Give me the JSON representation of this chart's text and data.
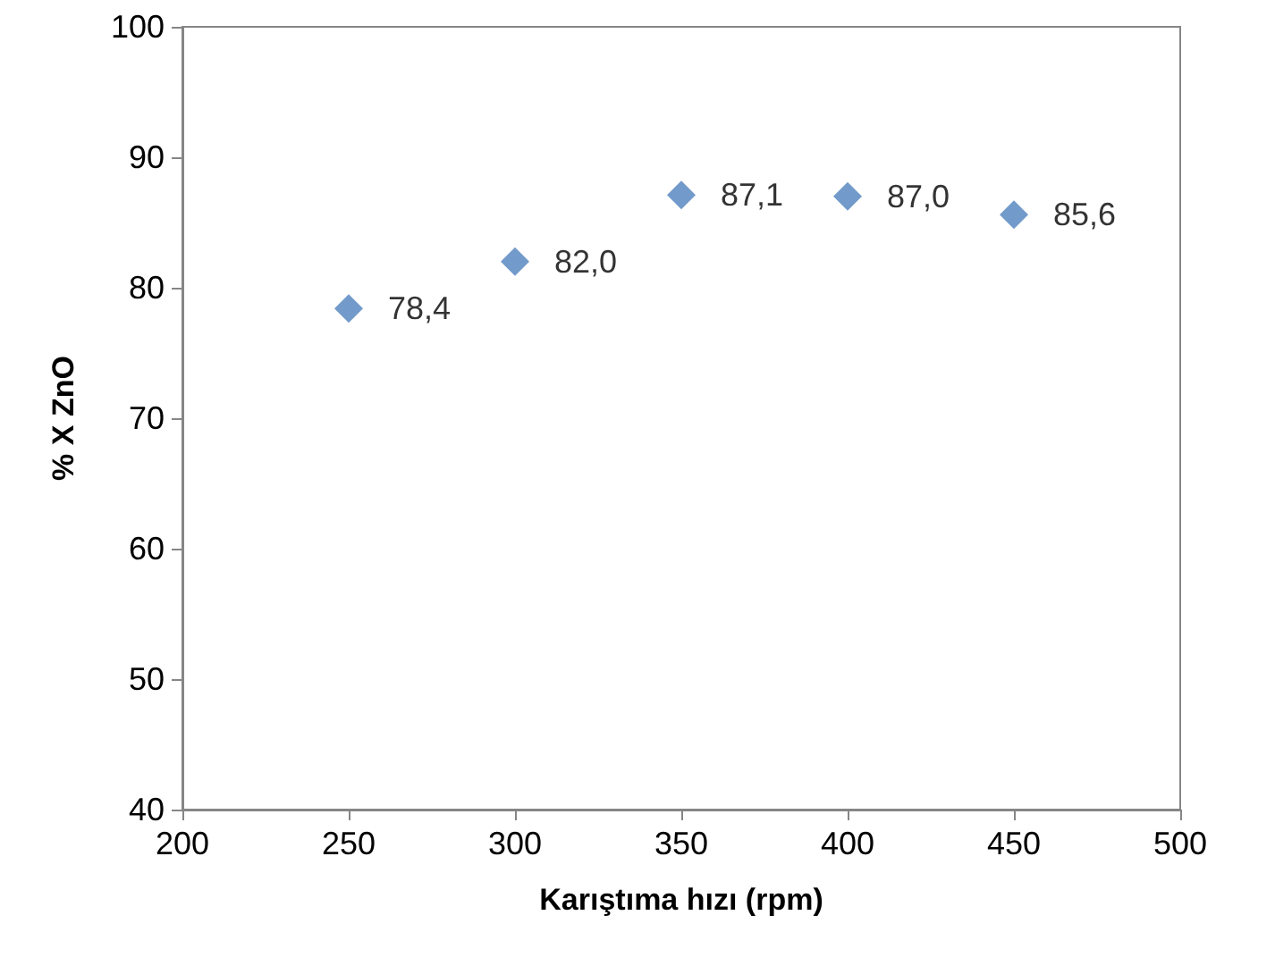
{
  "chart_data": {
    "type": "scatter",
    "xlabel": "Karıştıma hızı (rpm)",
    "ylabel": "% X ZnO",
    "x": [
      250,
      300,
      350,
      400,
      450
    ],
    "values": [
      78.4,
      82.0,
      87.1,
      87.0,
      85.6
    ],
    "value_labels": [
      "78,4",
      "82,0",
      "87,1",
      "87,0",
      "85,6"
    ],
    "color": "#4f81bd",
    "marker": "diamond",
    "xlim": [
      200,
      500
    ],
    "xticks": [
      200,
      250,
      300,
      350,
      400,
      450,
      500
    ],
    "ylim": [
      40,
      100
    ],
    "yticks": [
      40,
      50,
      60,
      70,
      80,
      90,
      100
    ]
  }
}
